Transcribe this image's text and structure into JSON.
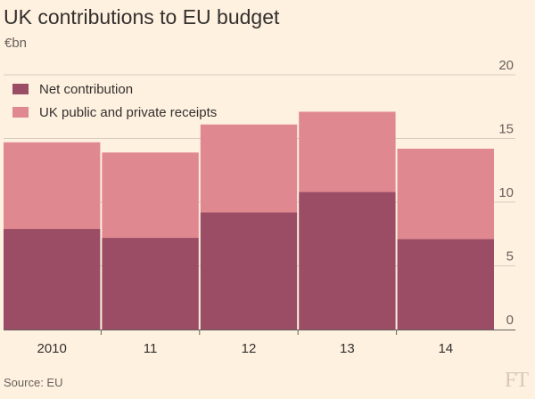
{
  "title": "UK contributions to EU budget",
  "subtitle": "€bn",
  "source": "Source: EU",
  "logo": "FT",
  "colors": {
    "background": "#fff1e0",
    "net": "#9b4d66",
    "receipts": "#df8890",
    "grid": "#d9ccc0",
    "axis": "#66605c"
  },
  "chart_data": {
    "type": "bar",
    "stacked": true,
    "categories": [
      "2010",
      "11",
      "12",
      "13",
      "14"
    ],
    "series": [
      {
        "name": "Net contribution",
        "color": "#9b4d66",
        "values": [
          7.9,
          7.2,
          9.2,
          10.8,
          7.1
        ]
      },
      {
        "name": "UK public and private receipts",
        "color": "#df8890",
        "values": [
          6.8,
          6.7,
          6.9,
          6.3,
          7.1
        ]
      }
    ],
    "totals": [
      14.7,
      13.9,
      16.1,
      17.1,
      14.2
    ],
    "ylim": [
      0,
      20
    ],
    "yticks": [
      0,
      5,
      10,
      15,
      20
    ],
    "grid": true,
    "legend": "top-left",
    "y_axis_side": "right"
  }
}
